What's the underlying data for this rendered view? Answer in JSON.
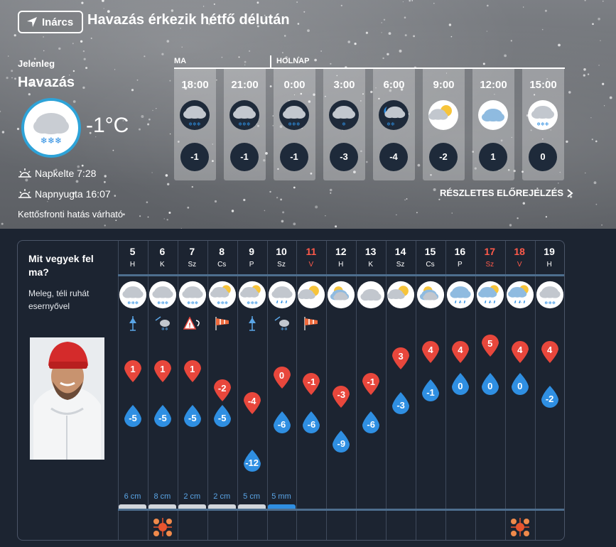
{
  "header": {
    "location_button": "Inárcs",
    "headline": "Havazás érkezik hétfő délután"
  },
  "current": {
    "label": "Jelenleg",
    "condition": "Havazás",
    "temp": "-1°C",
    "icon": "snow-cloud-icon",
    "sunrise": "Napkelte 7:28",
    "sunset": "Napnyugta 16:07",
    "front_effect": "Kettősfronti hatás várható"
  },
  "hourly": {
    "day_labels": [
      "MA",
      "HOLNAP"
    ],
    "detail_link": "RÉSZLETES ELŐREJELZÉS",
    "hours": [
      {
        "time": "18:00",
        "icon": "snow-cloud-icon",
        "temp": "-1"
      },
      {
        "time": "21:00",
        "icon": "snow-cloud-icon",
        "temp": "-1"
      },
      {
        "time": "0:00",
        "icon": "snow-cloud-icon",
        "temp": "-1"
      },
      {
        "time": "3:00",
        "icon": "light-snow-cloud-icon",
        "temp": "-3"
      },
      {
        "time": "6:00",
        "icon": "night-snow-cloud-icon",
        "temp": "-4"
      },
      {
        "time": "9:00",
        "icon": "sun-cloud-icon",
        "temp": "-2"
      },
      {
        "time": "12:00",
        "icon": "cloud-icon",
        "temp": "1"
      },
      {
        "time": "15:00",
        "icon": "snow-cloud-icon",
        "temp": "0"
      }
    ]
  },
  "advice": {
    "title": "Mit vegyek fel ma?",
    "text": "Meleg, téli ruhát esernyővel"
  },
  "daily": [
    {
      "day": "5",
      "weekday": "H",
      "red": false,
      "icon": "snow-cloud",
      "symbol": "cold-front-icon",
      "max": "1",
      "min": "-5",
      "precip": "6 cm",
      "ptype": "snow",
      "fan": false
    },
    {
      "day": "6",
      "weekday": "K",
      "red": false,
      "icon": "snow-cloud",
      "symbol": "wind-snow-icon",
      "max": "1",
      "min": "-5",
      "precip": "8 cm",
      "ptype": "snow",
      "fan": true
    },
    {
      "day": "7",
      "weekday": "Sz",
      "red": false,
      "icon": "snow-cloud",
      "symbol": "warning-wind-icon",
      "max": "1",
      "min": "-5",
      "precip": "2 cm",
      "ptype": "snow",
      "fan": false
    },
    {
      "day": "8",
      "weekday": "Cs",
      "red": false,
      "icon": "sun-snow-cloud",
      "symbol": "windsock-icon",
      "max": "-2",
      "min": "-5",
      "precip": "2 cm",
      "ptype": "snow",
      "fan": false
    },
    {
      "day": "9",
      "weekday": "P",
      "red": false,
      "icon": "sun-snow-cloud",
      "symbol": "cold-front-icon",
      "max": "-4",
      "min": "-12",
      "precip": "5 cm",
      "ptype": "snow",
      "fan": false
    },
    {
      "day": "10",
      "weekday": "Sz",
      "red": false,
      "icon": "rain-cloud",
      "symbol": "wind-snow-icon",
      "max": "0",
      "min": "-6",
      "precip": "5 mm",
      "ptype": "rain",
      "fan": false
    },
    {
      "day": "11",
      "weekday": "V",
      "red": true,
      "icon": "sun-cloud",
      "symbol": "windsock-icon",
      "max": "-1",
      "min": "-6",
      "precip": "",
      "ptype": "",
      "fan": false
    },
    {
      "day": "12",
      "weekday": "H",
      "red": false,
      "icon": "sun-cloud-cloud",
      "symbol": "",
      "max": "-3",
      "min": "-9",
      "precip": "",
      "ptype": "",
      "fan": false
    },
    {
      "day": "13",
      "weekday": "K",
      "red": false,
      "icon": "cloud",
      "symbol": "",
      "max": "-1",
      "min": "-6",
      "precip": "",
      "ptype": "",
      "fan": false
    },
    {
      "day": "14",
      "weekday": "Sz",
      "red": false,
      "icon": "sun-cloud",
      "symbol": "",
      "max": "3",
      "min": "-3",
      "precip": "",
      "ptype": "",
      "fan": false
    },
    {
      "day": "15",
      "weekday": "Cs",
      "red": false,
      "icon": "sun-cloud-cloud",
      "symbol": "",
      "max": "4",
      "min": "-1",
      "precip": "",
      "ptype": "",
      "fan": false
    },
    {
      "day": "16",
      "weekday": "P",
      "red": false,
      "icon": "rain-cloud-blue",
      "symbol": "",
      "max": "4",
      "min": "0",
      "precip": "",
      "ptype": "",
      "fan": false
    },
    {
      "day": "17",
      "weekday": "Sz",
      "red": true,
      "icon": "sun-rain-cloud",
      "symbol": "",
      "max": "5",
      "min": "0",
      "precip": "",
      "ptype": "",
      "fan": false
    },
    {
      "day": "18",
      "weekday": "V",
      "red": true,
      "icon": "sun-rain-cloud",
      "symbol": "",
      "max": "4",
      "min": "0",
      "precip": "",
      "ptype": "",
      "fan": true
    },
    {
      "day": "19",
      "weekday": "H",
      "red": false,
      "icon": "snow-cloud",
      "symbol": "",
      "max": "4",
      "min": "-2",
      "precip": "",
      "ptype": "",
      "fan": false
    }
  ],
  "colors": {
    "max_drop": "#e8473c",
    "min_drop": "#2f8fe2",
    "panel_bg": "#1c2431",
    "accent_ring": "#2ea3d8"
  }
}
